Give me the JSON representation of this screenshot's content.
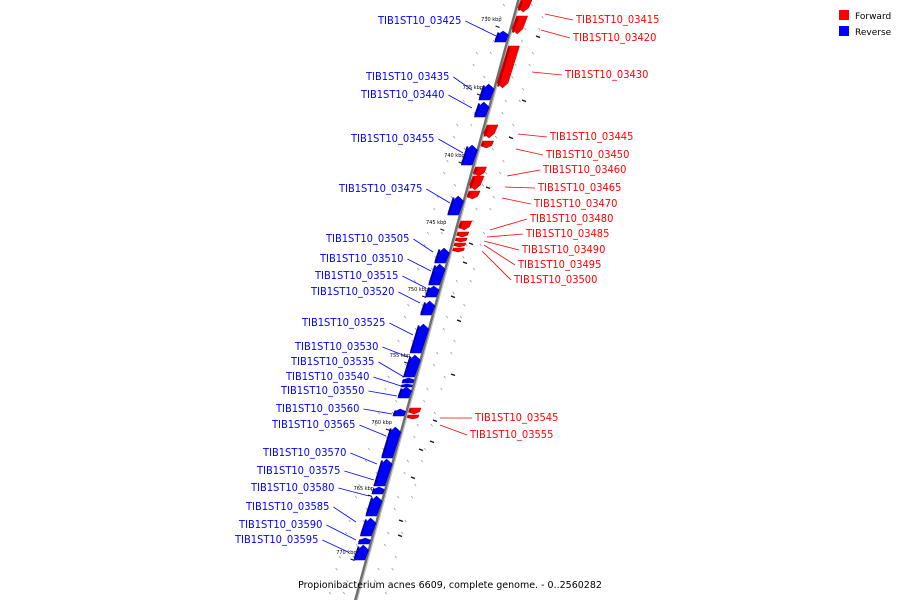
{
  "genome_caption": "Propionibacterium acnes 6609, complete genome. - 0..2560282",
  "legend": [
    {
      "name": "Forward",
      "color": "#ff0000"
    },
    {
      "name": "Reverse",
      "color": "#0000ff"
    }
  ],
  "colors": {
    "forward": "#ff0000",
    "forward_dark": "#b00000",
    "reverse": "#0000ff",
    "reverse_dark": "#00009a",
    "backbone": "#7a7a7a"
  },
  "ticks": [
    {
      "label": "730 kbp"
    },
    {
      "label": "735 kbp"
    },
    {
      "label": "740 kbp"
    },
    {
      "label": "745 kbp"
    },
    {
      "label": "750 kbp"
    },
    {
      "label": "755 kbp"
    },
    {
      "label": "760 kbp"
    },
    {
      "label": "765 kbp"
    },
    {
      "label": "770 kbp"
    }
  ],
  "features": [
    {
      "name": "TIB1ST10_03415",
      "strand": "forward"
    },
    {
      "name": "TIB1ST10_03420",
      "strand": "forward"
    },
    {
      "name": "TIB1ST10_03425",
      "strand": "reverse"
    },
    {
      "name": "TIB1ST10_03430",
      "strand": "forward"
    },
    {
      "name": "TIB1ST10_03435",
      "strand": "reverse"
    },
    {
      "name": "TIB1ST10_03440",
      "strand": "reverse"
    },
    {
      "name": "TIB1ST10_03445",
      "strand": "forward"
    },
    {
      "name": "TIB1ST10_03450",
      "strand": "forward"
    },
    {
      "name": "TIB1ST10_03455",
      "strand": "reverse"
    },
    {
      "name": "TIB1ST10_03460",
      "strand": "forward"
    },
    {
      "name": "TIB1ST10_03465",
      "strand": "forward"
    },
    {
      "name": "TIB1ST10_03470",
      "strand": "forward"
    },
    {
      "name": "TIB1ST10_03475",
      "strand": "reverse"
    },
    {
      "name": "TIB1ST10_03480",
      "strand": "forward"
    },
    {
      "name": "TIB1ST10_03485",
      "strand": "forward"
    },
    {
      "name": "TIB1ST10_03490",
      "strand": "forward"
    },
    {
      "name": "TIB1ST10_03495",
      "strand": "forward"
    },
    {
      "name": "TIB1ST10_03500",
      "strand": "forward"
    },
    {
      "name": "TIB1ST10_03505",
      "strand": "reverse"
    },
    {
      "name": "TIB1ST10_03510",
      "strand": "reverse"
    },
    {
      "name": "TIB1ST10_03515",
      "strand": "reverse"
    },
    {
      "name": "TIB1ST10_03520",
      "strand": "reverse"
    },
    {
      "name": "TIB1ST10_03525",
      "strand": "reverse"
    },
    {
      "name": "TIB1ST10_03530",
      "strand": "reverse"
    },
    {
      "name": "TIB1ST10_03535",
      "strand": "reverse"
    },
    {
      "name": "TIB1ST10_03540",
      "strand": "reverse"
    },
    {
      "name": "TIB1ST10_03545",
      "strand": "forward"
    },
    {
      "name": "TIB1ST10_03550",
      "strand": "reverse"
    },
    {
      "name": "TIB1ST10_03555",
      "strand": "forward"
    },
    {
      "name": "TIB1ST10_03560",
      "strand": "reverse"
    },
    {
      "name": "TIB1ST10_03565",
      "strand": "reverse"
    },
    {
      "name": "TIB1ST10_03570",
      "strand": "reverse"
    },
    {
      "name": "TIB1ST10_03575",
      "strand": "reverse"
    },
    {
      "name": "TIB1ST10_03580",
      "strand": "reverse"
    },
    {
      "name": "TIB1ST10_03585",
      "strand": "reverse"
    },
    {
      "name": "TIB1ST10_03590",
      "strand": "reverse"
    },
    {
      "name": "TIB1ST10_03595",
      "strand": "reverse"
    }
  ]
}
